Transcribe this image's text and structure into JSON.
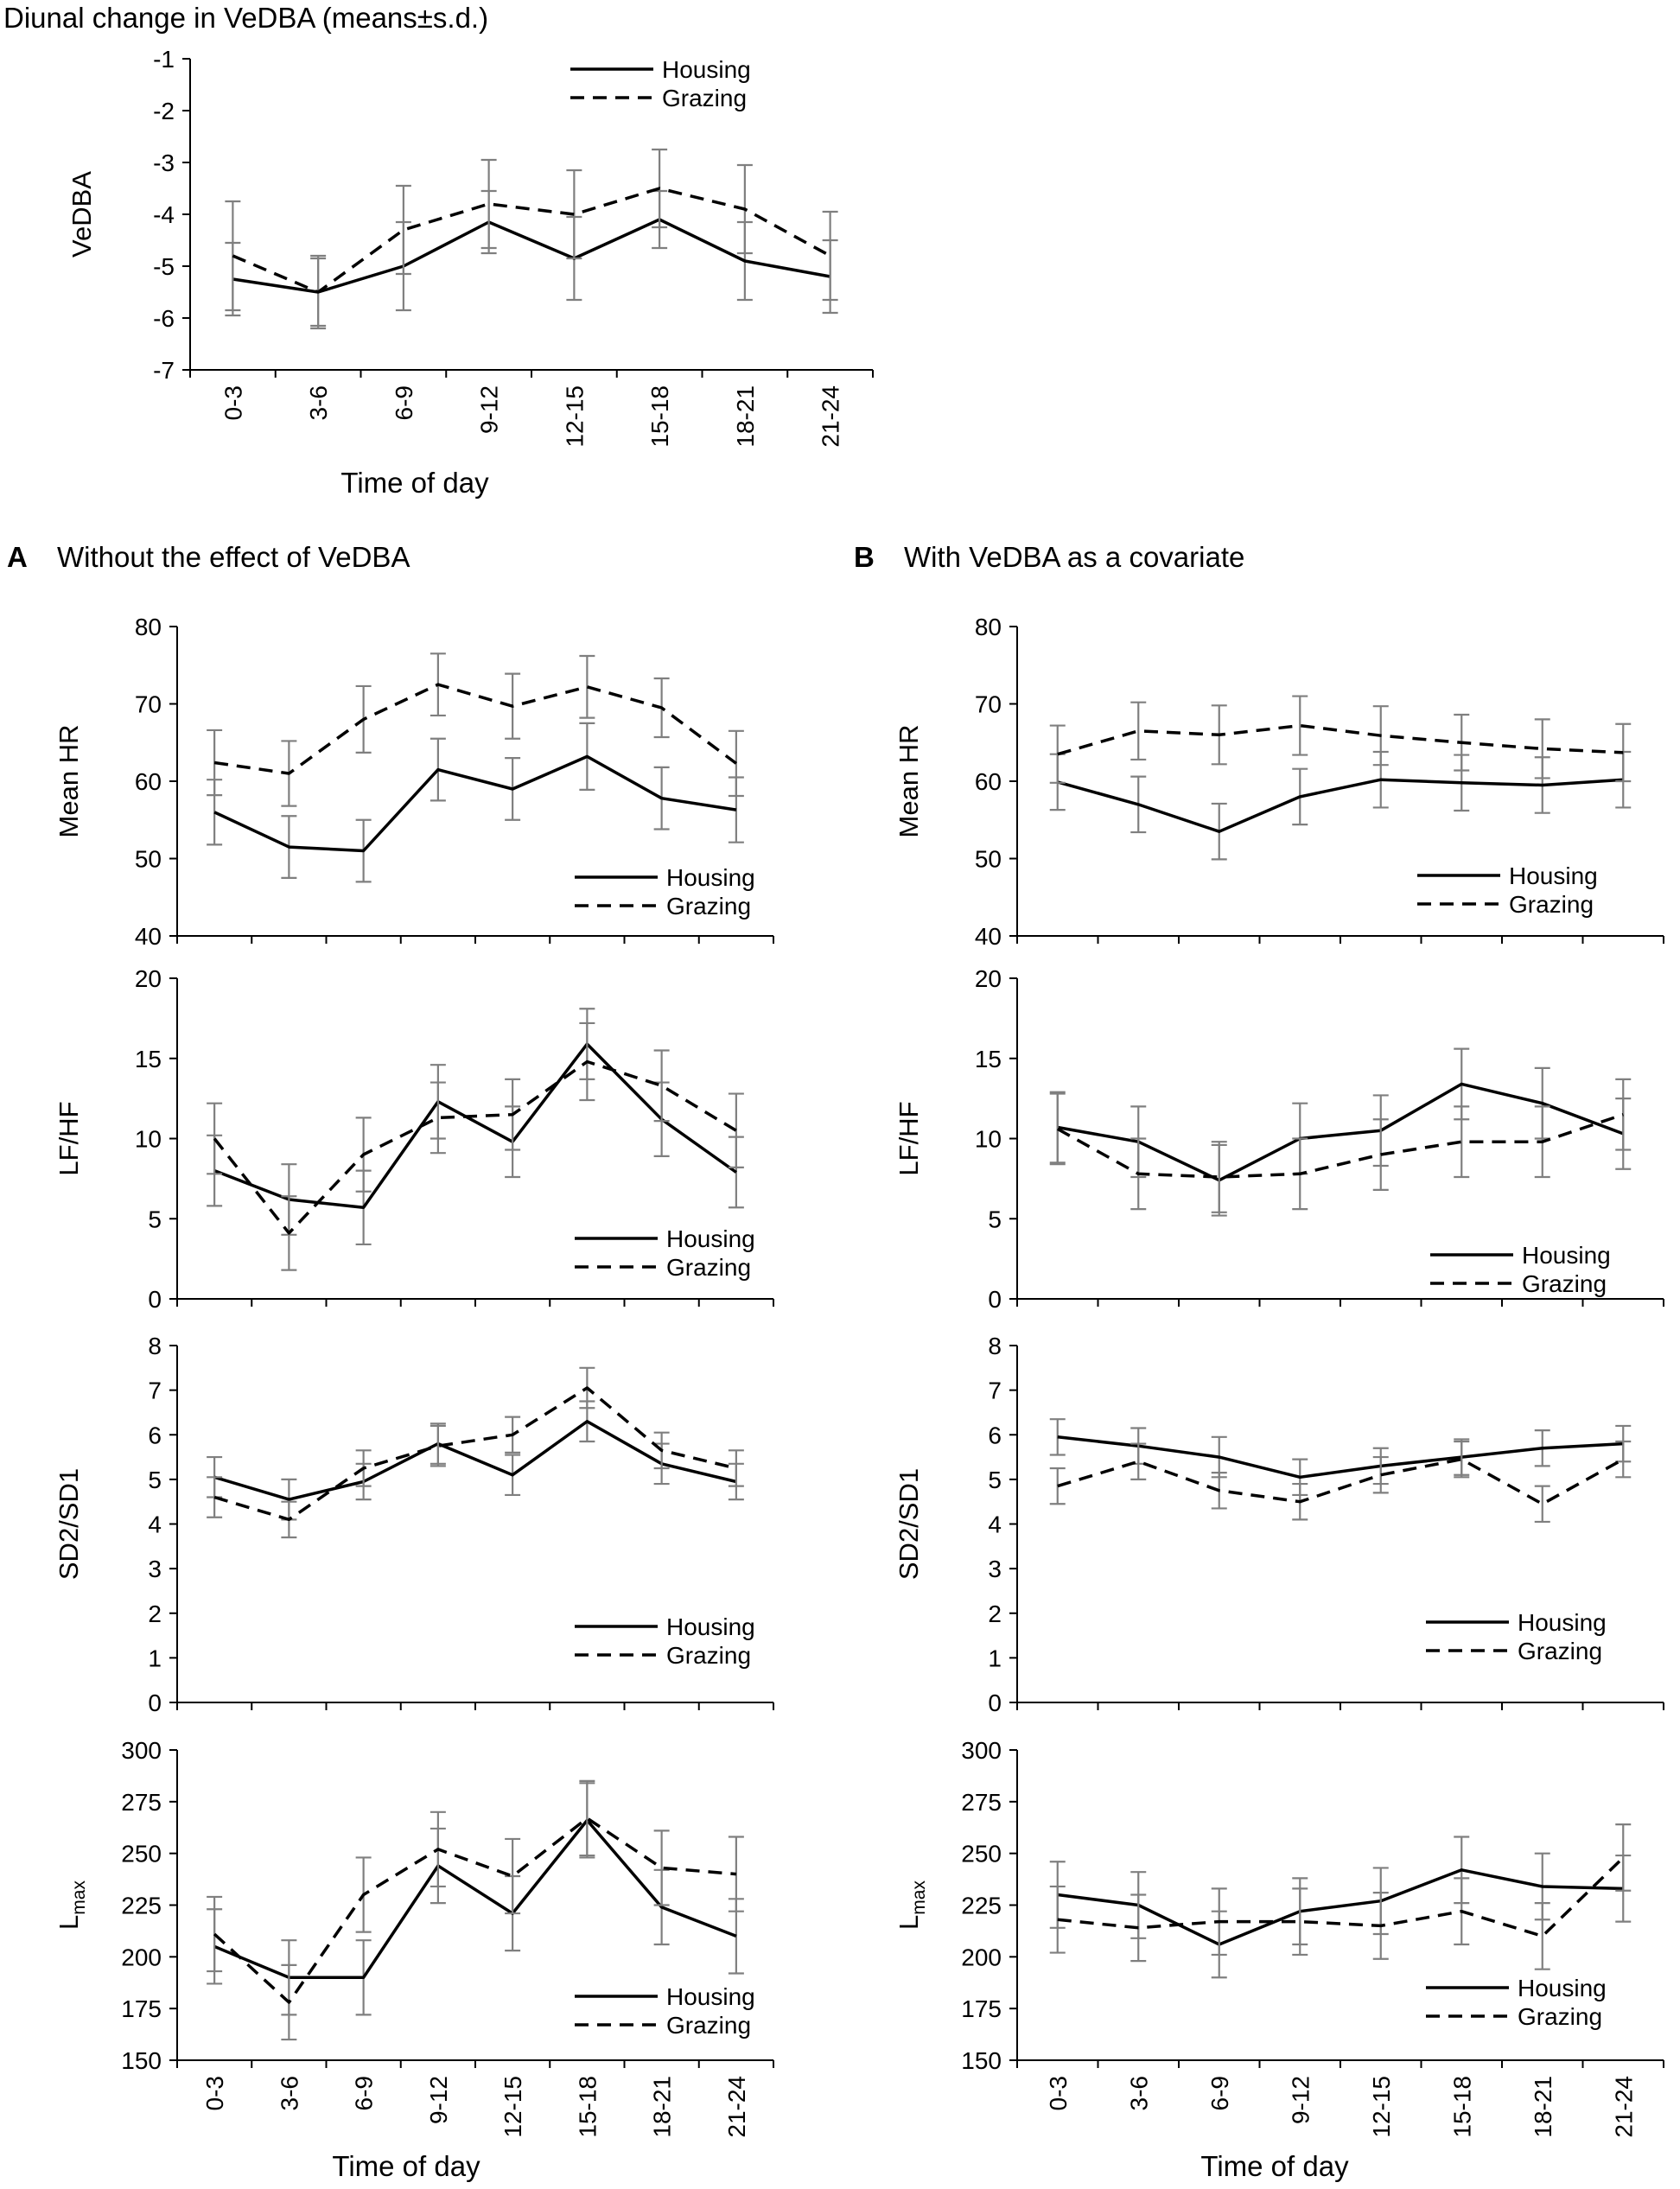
{
  "header": {
    "top_title": "Diunal change in VeDBA (means±s.d.)",
    "panel_a_letter": "A",
    "panel_a_title": "Without the effect of VeDBA",
    "panel_b_letter": "B",
    "panel_b_title": "With VeDBA as a covariate"
  },
  "chart_data": [
    {
      "id": "vedba",
      "type": "line",
      "ylabel": "VeDBA",
      "xlabel": "Time of day",
      "ylim": [
        -7,
        -1
      ],
      "yticks": [
        -7,
        -6,
        -5,
        -4,
        -3,
        -2,
        -1
      ],
      "legend": "top-right",
      "categories": [
        "0-3",
        "3-6",
        "6-9",
        "9-12",
        "12-15",
        "15-18",
        "18-21",
        "21-24"
      ],
      "series": [
        {
          "name": "Housing",
          "style": "solid",
          "values": [
            -5.25,
            -5.5,
            -5.0,
            -4.15,
            -4.85,
            -4.1,
            -4.9,
            -5.2
          ],
          "sd": [
            0.7,
            0.7,
            0.85,
            0.6,
            0.8,
            0.55,
            0.75,
            0.7
          ]
        },
        {
          "name": "Grazing",
          "style": "dashed",
          "values": [
            -4.8,
            -5.5,
            -4.3,
            -3.8,
            -4.0,
            -3.5,
            -3.9,
            -4.8
          ],
          "sd": [
            1.05,
            0.65,
            0.85,
            0.85,
            0.85,
            0.75,
            0.85,
            0.85
          ]
        }
      ]
    },
    {
      "id": "a-hr",
      "type": "line",
      "ylabel": "Mean HR",
      "xlabel": "",
      "ylim": [
        40,
        80
      ],
      "yticks": [
        40,
        50,
        60,
        70,
        80
      ],
      "legend": "bottom-right",
      "categories": [
        "0-3",
        "3-6",
        "6-9",
        "9-12",
        "12-15",
        "15-18",
        "18-21",
        "21-24"
      ],
      "series": [
        {
          "name": "Housing",
          "style": "solid",
          "values": [
            56,
            51.5,
            51,
            61.5,
            59,
            63.2,
            57.8,
            56.3
          ],
          "sd": [
            4.2,
            4.0,
            4.0,
            4.0,
            4.0,
            4.3,
            4.0,
            4.2
          ]
        },
        {
          "name": "Grazing",
          "style": "dashed",
          "values": [
            62.4,
            61,
            68,
            72.5,
            69.7,
            72.2,
            69.5,
            62.3
          ],
          "sd": [
            4.2,
            4.2,
            4.3,
            4.0,
            4.2,
            4.0,
            3.8,
            4.2
          ]
        }
      ]
    },
    {
      "id": "a-lfhf",
      "type": "line",
      "ylabel": "LF/HF",
      "xlabel": "",
      "ylim": [
        0,
        20
      ],
      "yticks": [
        0,
        5,
        10,
        15,
        20
      ],
      "legend": "bottom-right",
      "categories": [
        "0-3",
        "3-6",
        "6-9",
        "9-12",
        "12-15",
        "15-18",
        "18-21",
        "21-24"
      ],
      "series": [
        {
          "name": "Housing",
          "style": "solid",
          "values": [
            8,
            6.2,
            5.7,
            12.3,
            9.8,
            15.9,
            11.2,
            7.9
          ],
          "sd": [
            2.2,
            2.2,
            2.3,
            2.3,
            2.2,
            2.2,
            2.3,
            2.2
          ]
        },
        {
          "name": "Grazing",
          "style": "dashed",
          "values": [
            10,
            4.1,
            9,
            11.3,
            11.5,
            14.8,
            13.3,
            10.5
          ],
          "sd": [
            2.2,
            2.3,
            2.3,
            2.2,
            2.2,
            2.4,
            2.2,
            2.3
          ]
        }
      ]
    },
    {
      "id": "a-sd",
      "type": "line",
      "ylabel": "SD2/SD1",
      "xlabel": "",
      "ylim": [
        0,
        8
      ],
      "yticks": [
        0,
        1,
        2,
        3,
        4,
        5,
        6,
        7,
        8
      ],
      "legend": "bottom-right",
      "categories": [
        "0-3",
        "3-6",
        "6-9",
        "9-12",
        "12-15",
        "15-18",
        "18-21",
        "21-24"
      ],
      "series": [
        {
          "name": "Housing",
          "style": "solid",
          "values": [
            5.05,
            4.55,
            4.95,
            5.8,
            5.1,
            6.3,
            5.35,
            4.95
          ],
          "sd": [
            0.45,
            0.45,
            0.4,
            0.45,
            0.45,
            0.45,
            0.45,
            0.4
          ]
        },
        {
          "name": "Grazing",
          "style": "dashed",
          "values": [
            4.6,
            4.1,
            5.25,
            5.75,
            6.0,
            7.05,
            5.65,
            5.25
          ],
          "sd": [
            0.45,
            0.4,
            0.4,
            0.45,
            0.4,
            0.45,
            0.4,
            0.4
          ]
        }
      ]
    },
    {
      "id": "a-lmax",
      "type": "line",
      "ylabel": "L",
      "ylabel_sub": "max",
      "xlabel": "Time of day",
      "ylim": [
        150,
        300
      ],
      "yticks": [
        150,
        175,
        200,
        225,
        250,
        275,
        300
      ],
      "legend": "bottom-right",
      "categories": [
        "0-3",
        "3-6",
        "6-9",
        "9-12",
        "12-15",
        "15-18",
        "18-21",
        "21-24"
      ],
      "series": [
        {
          "name": "Housing",
          "style": "solid",
          "values": [
            205,
            190,
            190,
            244,
            221,
            266,
            224,
            210
          ],
          "sd": [
            18,
            18,
            18,
            18,
            18,
            18,
            18,
            18
          ]
        },
        {
          "name": "Grazing",
          "style": "dashed",
          "values": [
            211,
            178,
            230,
            252,
            239,
            267,
            243,
            240
          ],
          "sd": [
            18,
            18,
            18,
            18,
            18,
            18,
            18,
            18
          ]
        }
      ]
    },
    {
      "id": "b-hr",
      "type": "line",
      "ylabel": "Mean HR",
      "xlabel": "",
      "ylim": [
        40,
        80
      ],
      "yticks": [
        40,
        50,
        60,
        70,
        80
      ],
      "legend": "bottom-right",
      "categories": [
        "0-3",
        "3-6",
        "6-9",
        "9-12",
        "12-15",
        "15-18",
        "18-21",
        "21-24"
      ],
      "series": [
        {
          "name": "Housing",
          "style": "solid",
          "values": [
            59.9,
            57,
            53.5,
            58,
            60.2,
            59.8,
            59.5,
            60.2
          ],
          "sd": [
            3.6,
            3.6,
            3.6,
            3.6,
            3.6,
            3.6,
            3.6,
            3.6
          ]
        },
        {
          "name": "Grazing",
          "style": "dashed",
          "values": [
            63.5,
            66.5,
            66,
            67.2,
            65.9,
            65,
            64.2,
            63.7
          ],
          "sd": [
            3.7,
            3.7,
            3.8,
            3.8,
            3.8,
            3.6,
            3.8,
            3.7
          ]
        }
      ]
    },
    {
      "id": "b-lfhf",
      "type": "line",
      "ylabel": "LF/HF",
      "xlabel": "",
      "ylim": [
        0,
        20
      ],
      "yticks": [
        0,
        5,
        10,
        15,
        20
      ],
      "legend": "bottom-right",
      "categories": [
        "0-3",
        "3-6",
        "6-9",
        "9-12",
        "12-15",
        "15-18",
        "18-21",
        "21-24"
      ],
      "series": [
        {
          "name": "Housing",
          "style": "solid",
          "values": [
            10.7,
            9.8,
            7.4,
            10,
            10.5,
            13.4,
            12.2,
            10.3
          ],
          "sd": [
            2.2,
            2.2,
            2.2,
            2.2,
            2.2,
            2.2,
            2.2,
            2.2
          ]
        },
        {
          "name": "Grazing",
          "style": "dashed",
          "values": [
            10.6,
            7.8,
            7.6,
            7.8,
            9,
            9.8,
            9.8,
            11.5
          ],
          "sd": [
            2.2,
            2.2,
            2.2,
            2.2,
            2.2,
            2.2,
            2.2,
            2.2
          ]
        }
      ]
    },
    {
      "id": "b-sd",
      "type": "line",
      "ylabel": "SD2/SD1",
      "xlabel": "",
      "ylim": [
        0,
        8
      ],
      "yticks": [
        0,
        1,
        2,
        3,
        4,
        5,
        6,
        7,
        8
      ],
      "legend": "bottom-right",
      "categories": [
        "0-3",
        "3-6",
        "6-9",
        "9-12",
        "12-15",
        "15-18",
        "18-21",
        "21-24"
      ],
      "series": [
        {
          "name": "Housing",
          "style": "solid",
          "values": [
            5.95,
            5.75,
            5.5,
            5.05,
            5.3,
            5.5,
            5.7,
            5.8
          ],
          "sd": [
            0.4,
            0.4,
            0.45,
            0.4,
            0.4,
            0.4,
            0.4,
            0.4
          ]
        },
        {
          "name": "Grazing",
          "style": "dashed",
          "values": [
            4.85,
            5.4,
            4.75,
            4.5,
            5.1,
            5.45,
            4.45,
            5.45
          ],
          "sd": [
            0.4,
            0.4,
            0.4,
            0.4,
            0.4,
            0.4,
            0.4,
            0.4
          ]
        }
      ]
    },
    {
      "id": "b-lmax",
      "type": "line",
      "ylabel": "L",
      "ylabel_sub": "max",
      "xlabel": "Time of day",
      "ylim": [
        150,
        300
      ],
      "yticks": [
        150,
        175,
        200,
        225,
        250,
        275,
        300
      ],
      "legend": "bottom-right",
      "categories": [
        "0-3",
        "3-6",
        "6-9",
        "9-12",
        "12-15",
        "15-18",
        "18-21",
        "21-24"
      ],
      "series": [
        {
          "name": "Housing",
          "style": "solid",
          "values": [
            230,
            225,
            206,
            222,
            227,
            242,
            234,
            233
          ],
          "sd": [
            16,
            16,
            16,
            16,
            16,
            16,
            16,
            16
          ]
        },
        {
          "name": "Grazing",
          "style": "dashed",
          "values": [
            218,
            214,
            217,
            217,
            215,
            222,
            210,
            248
          ],
          "sd": [
            16,
            16,
            16,
            16,
            16,
            16,
            16,
            16
          ]
        }
      ]
    }
  ]
}
